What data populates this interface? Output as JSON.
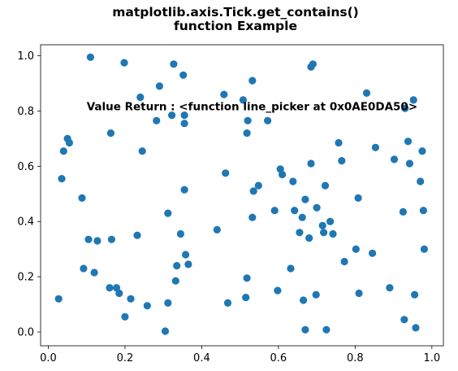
{
  "chart_data": {
    "type": "scatter",
    "title_line1": "matplotlib.axis.Tick.get_contains()",
    "title_line2": "function Example",
    "xlabel": "",
    "ylabel": "",
    "xlim": [
      -0.02,
      1.03
    ],
    "ylim": [
      -0.05,
      1.04
    ],
    "grid": false,
    "marker_color": "#1f77b4",
    "xticks": [
      0.0,
      0.2,
      0.4,
      0.6,
      0.8,
      1.0
    ],
    "yticks": [
      0.0,
      0.2,
      0.4,
      0.6,
      0.8,
      1.0
    ],
    "annotation": {
      "text": "Value Return : <function line_picker at 0x0AE0DA50>",
      "x": 0.1,
      "y": 0.8
    },
    "points": [
      [
        0.027,
        0.12
      ],
      [
        0.035,
        0.555
      ],
      [
        0.04,
        0.655
      ],
      [
        0.05,
        0.7
      ],
      [
        0.055,
        0.685
      ],
      [
        0.088,
        0.485
      ],
      [
        0.092,
        0.23
      ],
      [
        0.105,
        0.335
      ],
      [
        0.11,
        0.995
      ],
      [
        0.12,
        0.215
      ],
      [
        0.128,
        0.33
      ],
      [
        0.16,
        0.16
      ],
      [
        0.163,
        0.72
      ],
      [
        0.165,
        0.335
      ],
      [
        0.178,
        0.16
      ],
      [
        0.185,
        0.14
      ],
      [
        0.198,
        0.975
      ],
      [
        0.2,
        0.055
      ],
      [
        0.215,
        0.12
      ],
      [
        0.232,
        0.35
      ],
      [
        0.24,
        0.85
      ],
      [
        0.245,
        0.655
      ],
      [
        0.258,
        0.095
      ],
      [
        0.282,
        0.765
      ],
      [
        0.29,
        0.89
      ],
      [
        0.305,
        0.003
      ],
      [
        0.312,
        0.43
      ],
      [
        0.312,
        0.105
      ],
      [
        0.322,
        0.785
      ],
      [
        0.327,
        0.97
      ],
      [
        0.332,
        0.185
      ],
      [
        0.335,
        0.24
      ],
      [
        0.345,
        0.355
      ],
      [
        0.352,
        0.93
      ],
      [
        0.355,
        0.785
      ],
      [
        0.355,
        0.755
      ],
      [
        0.355,
        0.515
      ],
      [
        0.358,
        0.28
      ],
      [
        0.365,
        0.245
      ],
      [
        0.44,
        0.37
      ],
      [
        0.458,
        0.86
      ],
      [
        0.462,
        0.575
      ],
      [
        0.468,
        0.105
      ],
      [
        0.508,
        0.84
      ],
      [
        0.515,
        0.125
      ],
      [
        0.518,
        0.72
      ],
      [
        0.518,
        0.195
      ],
      [
        0.52,
        0.765
      ],
      [
        0.532,
        0.91
      ],
      [
        0.532,
        0.415
      ],
      [
        0.535,
        0.51
      ],
      [
        0.548,
        0.53
      ],
      [
        0.572,
        0.765
      ],
      [
        0.59,
        0.44
      ],
      [
        0.598,
        0.15
      ],
      [
        0.605,
        0.59
      ],
      [
        0.61,
        0.57
      ],
      [
        0.632,
        0.23
      ],
      [
        0.638,
        0.545
      ],
      [
        0.642,
        0.44
      ],
      [
        0.655,
        0.36
      ],
      [
        0.662,
        0.415
      ],
      [
        0.665,
        0.115
      ],
      [
        0.67,
        0.48
      ],
      [
        0.67,
        0.008
      ],
      [
        0.68,
        0.34
      ],
      [
        0.685,
        0.61
      ],
      [
        0.685,
        0.96
      ],
      [
        0.69,
        0.97
      ],
      [
        0.698,
        0.135
      ],
      [
        0.7,
        0.45
      ],
      [
        0.715,
        0.385
      ],
      [
        0.718,
        0.36
      ],
      [
        0.722,
        0.53
      ],
      [
        0.725,
        0.008
      ],
      [
        0.735,
        0.4
      ],
      [
        0.742,
        0.355
      ],
      [
        0.757,
        0.685
      ],
      [
        0.765,
        0.62
      ],
      [
        0.772,
        0.255
      ],
      [
        0.802,
        0.3
      ],
      [
        0.808,
        0.485
      ],
      [
        0.81,
        0.14
      ],
      [
        0.83,
        0.865
      ],
      [
        0.845,
        0.285
      ],
      [
        0.853,
        0.668
      ],
      [
        0.89,
        0.16
      ],
      [
        0.902,
        0.625
      ],
      [
        0.925,
        0.435
      ],
      [
        0.928,
        0.045
      ],
      [
        0.93,
        0.81
      ],
      [
        0.938,
        0.69
      ],
      [
        0.942,
        0.61
      ],
      [
        0.952,
        0.84
      ],
      [
        0.955,
        0.135
      ],
      [
        0.958,
        0.015
      ],
      [
        0.97,
        0.545
      ],
      [
        0.975,
        0.655
      ],
      [
        0.978,
        0.44
      ],
      [
        0.98,
        0.3
      ]
    ]
  }
}
